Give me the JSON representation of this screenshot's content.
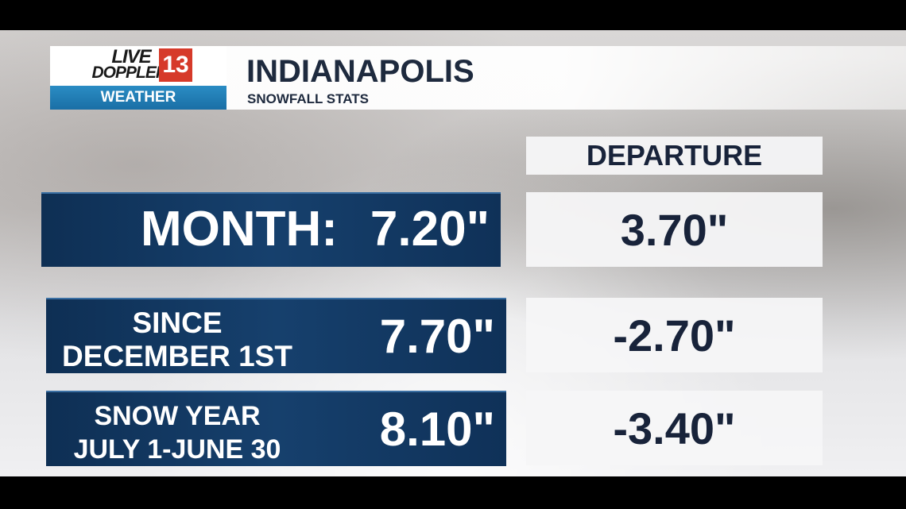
{
  "logo": {
    "live": "LIVE",
    "doppler": "DOPPLER",
    "channel": "13",
    "label": "WEATHER"
  },
  "header": {
    "title": "INDIANAPOLIS",
    "subtitle": "SNOWFALL STATS"
  },
  "table": {
    "column_header": "DEPARTURE",
    "rows": [
      {
        "label": [
          "MONTH:"
        ],
        "value": "7.20\"",
        "departure": "3.70\""
      },
      {
        "label": [
          "SINCE",
          "DECEMBER 1ST"
        ],
        "value": "7.70\"",
        "departure": "-2.70\""
      },
      {
        "label": [
          "SNOW YEAR",
          "JULY 1-JUNE 30"
        ],
        "value": "8.10\"",
        "departure": "-3.40\""
      }
    ]
  }
}
